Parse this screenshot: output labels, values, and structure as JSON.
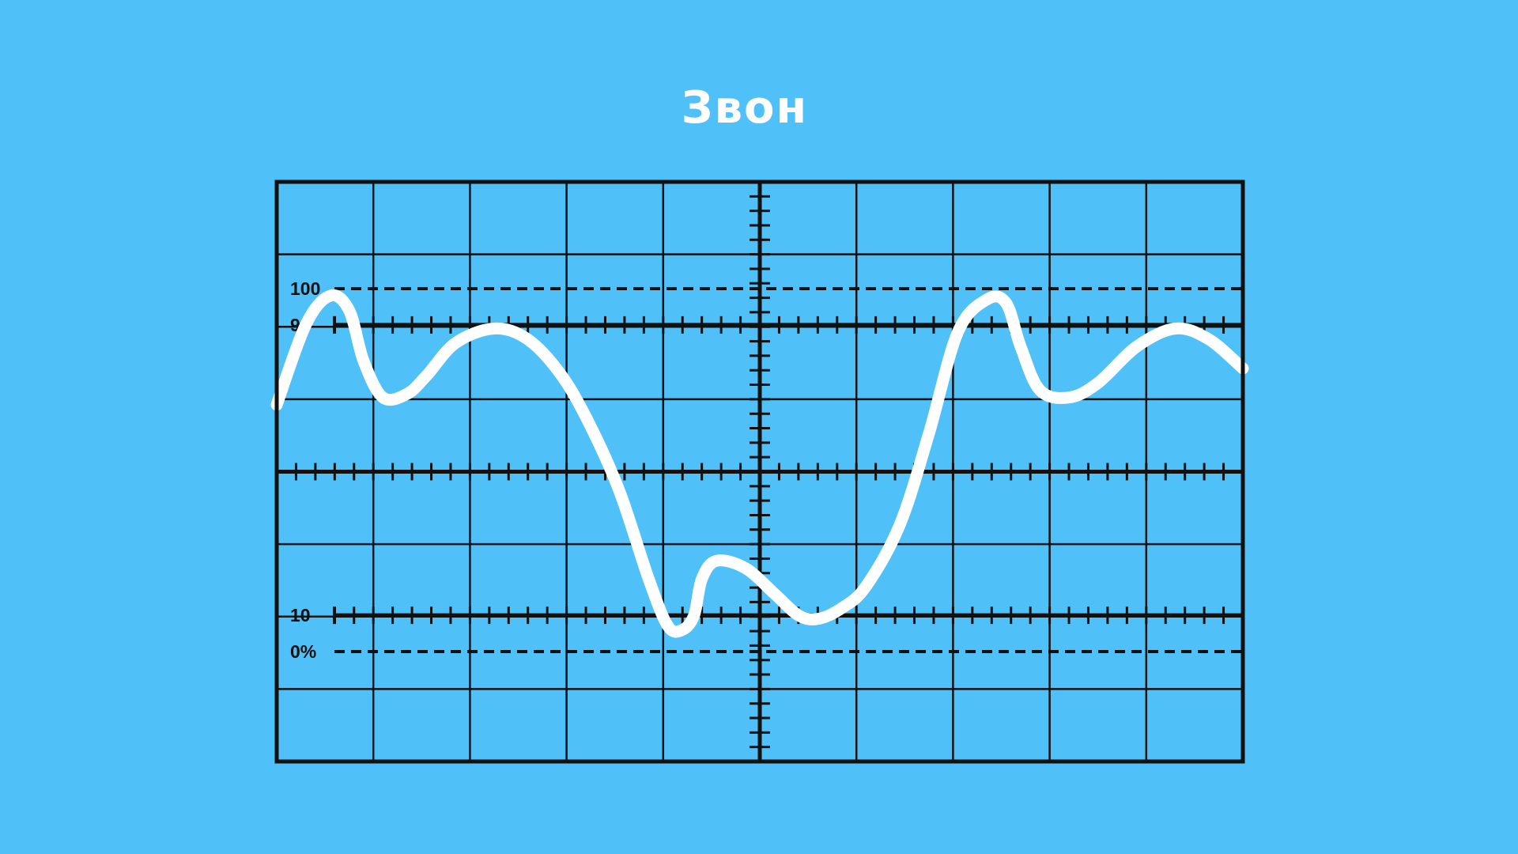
{
  "title": "Звон",
  "colors": {
    "background": "#4FC1F8",
    "grid": "#111111",
    "trace": "#FFFFFF"
  },
  "reference_levels": [
    {
      "label": "100",
      "value": 100,
      "style": "dashed"
    },
    {
      "label": "90",
      "value": 90,
      "style": "solid"
    },
    {
      "label": "10",
      "value": 10,
      "style": "solid"
    },
    {
      "label": "0%",
      "value": 0,
      "style": "dashed"
    }
  ],
  "graticule": {
    "columns": 10,
    "rows": 8
  },
  "waveform": {
    "description_hint": "square-ish pulse with ringing",
    "points": [
      [
        0.0,
        68
      ],
      [
        0.3,
        90
      ],
      [
        0.55,
        98
      ],
      [
        0.75,
        94
      ],
      [
        0.9,
        80
      ],
      [
        1.1,
        70
      ],
      [
        1.35,
        71
      ],
      [
        1.55,
        76
      ],
      [
        1.85,
        85
      ],
      [
        2.25,
        89
      ],
      [
        2.6,
        86
      ],
      [
        2.95,
        76
      ],
      [
        3.25,
        62
      ],
      [
        3.55,
        44
      ],
      [
        3.85,
        20
      ],
      [
        4.05,
        7
      ],
      [
        4.2,
        6
      ],
      [
        4.32,
        10
      ],
      [
        4.4,
        20
      ],
      [
        4.55,
        25
      ],
      [
        4.85,
        23
      ],
      [
        5.15,
        16
      ],
      [
        5.4,
        10
      ],
      [
        5.6,
        9
      ],
      [
        5.85,
        12
      ],
      [
        6.1,
        18
      ],
      [
        6.45,
        35
      ],
      [
        6.75,
        60
      ],
      [
        7.05,
        88
      ],
      [
        7.35,
        97
      ],
      [
        7.55,
        96
      ],
      [
        7.7,
        84
      ],
      [
        7.9,
        72
      ],
      [
        8.2,
        70
      ],
      [
        8.5,
        74
      ],
      [
        8.9,
        84
      ],
      [
        9.3,
        89
      ],
      [
        9.65,
        86
      ],
      [
        10.0,
        78
      ]
    ]
  }
}
